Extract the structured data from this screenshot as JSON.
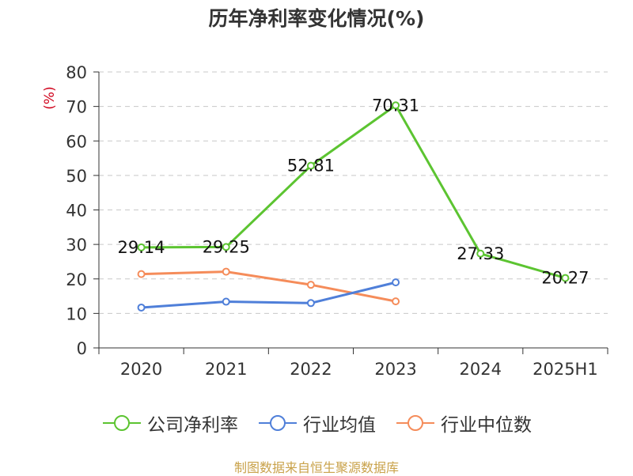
{
  "chart_data": {
    "type": "line",
    "title": "历年净利率变化情况(%)",
    "ylabel": "(%)",
    "xlabel": "",
    "categories": [
      "2020",
      "2021",
      "2022",
      "2023",
      "2024",
      "2025H1"
    ],
    "ylim": [
      0,
      80
    ],
    "yticks": [
      0,
      10,
      20,
      30,
      40,
      50,
      60,
      70,
      80
    ],
    "grid": true,
    "legend_position": "bottom",
    "series": [
      {
        "name": "公司净利率",
        "color": "#5cc431",
        "values": [
          29.14,
          29.25,
          52.81,
          70.31,
          27.33,
          20.27
        ],
        "labels": [
          "29.14",
          "29.25",
          "52.81",
          "70.31",
          "27.33",
          "20.27"
        ],
        "show_labels": true
      },
      {
        "name": "行业均值",
        "color": "#4f7fd9",
        "values": [
          11.7,
          13.4,
          13.0,
          19.0,
          null,
          null
        ],
        "show_labels": false
      },
      {
        "name": "行业中位数",
        "color": "#f58c5a",
        "values": [
          21.4,
          22.1,
          18.3,
          13.5,
          null,
          null
        ],
        "show_labels": false
      }
    ]
  },
  "source": "制图数据来自恒生聚源数据库"
}
